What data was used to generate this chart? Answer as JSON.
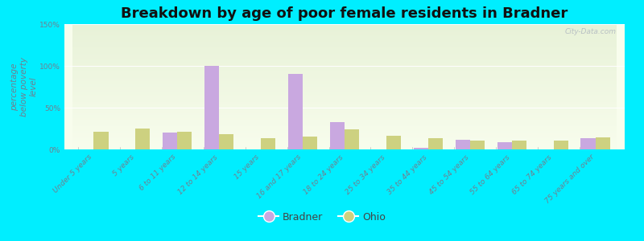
{
  "title": "Breakdown by age of poor female residents in Bradner",
  "ylabel": "percentage\nbelow poverty\nlevel",
  "categories": [
    "Under 5 years",
    "5 years",
    "6 to 11 years",
    "12 to 14 years",
    "15 years",
    "16 and 17 years",
    "18 to 24 years",
    "25 to 34 years",
    "35 to 44 years",
    "45 to 54 years",
    "55 to 64 years",
    "65 to 74 years",
    "75 years and over"
  ],
  "bradner_values": [
    0,
    0,
    20,
    100,
    0,
    90,
    33,
    0,
    2,
    12,
    9,
    0,
    13
  ],
  "ohio_values": [
    21,
    25,
    21,
    18,
    13,
    15,
    24,
    16,
    13,
    11,
    11,
    11,
    14
  ],
  "bradner_color": "#c9a8e0",
  "ohio_color": "#cdd180",
  "bg_color_top": "#e8f2d8",
  "bg_color_bottom": "#f8fded",
  "outer_bg": "#00eeff",
  "ylim": [
    0,
    150
  ],
  "yticks": [
    0,
    50,
    100,
    150
  ],
  "ytick_labels": [
    "0%",
    "50%",
    "100%",
    "150%"
  ],
  "bar_width": 0.35,
  "title_fontsize": 13,
  "axis_label_fontsize": 7.5,
  "tick_fontsize": 6.5,
  "legend_fontsize": 9,
  "tick_color": "#708090",
  "watermark": "City-Data.com"
}
